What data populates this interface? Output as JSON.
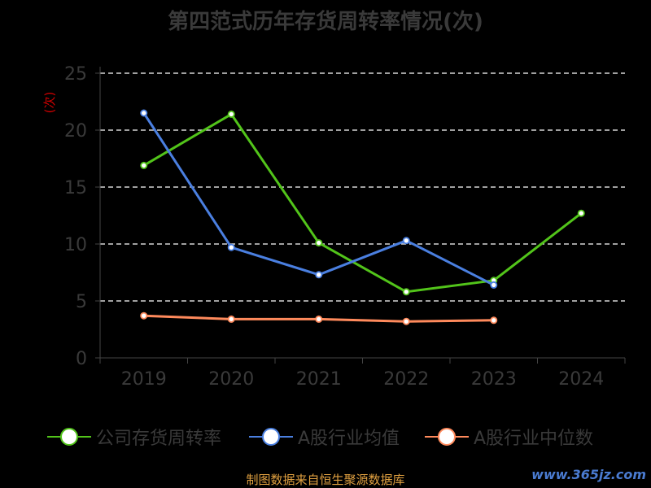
{
  "title": "第四范式历年存货周转率情况(次)",
  "footer": "制图数据来自恒生聚源数据库",
  "watermark": "www.365jz.com",
  "chart_data": {
    "type": "line",
    "title": "第四范式历年存货周转率情况(次)",
    "ylabel": "(次)",
    "categories": [
      "2019",
      "2020",
      "2021",
      "2022",
      "2023",
      "2024"
    ],
    "ylim": [
      0,
      25
    ],
    "yticks": [
      0,
      5,
      10,
      15,
      20,
      25
    ],
    "grid": true,
    "legend_position": "bottom",
    "series": [
      {
        "name": "公司存货周转率",
        "color": "#52c41a",
        "values": [
          16.9,
          21.4,
          10.1,
          5.8,
          6.8,
          12.7
        ]
      },
      {
        "name": "A股行业均值",
        "color": "#4a7fe0",
        "values": [
          21.5,
          9.7,
          7.3,
          10.3,
          6.4,
          null
        ]
      },
      {
        "name": "A股行业中位数",
        "color": "#ff8a5c",
        "values": [
          3.7,
          3.4,
          3.4,
          3.2,
          3.3,
          null
        ]
      }
    ]
  }
}
